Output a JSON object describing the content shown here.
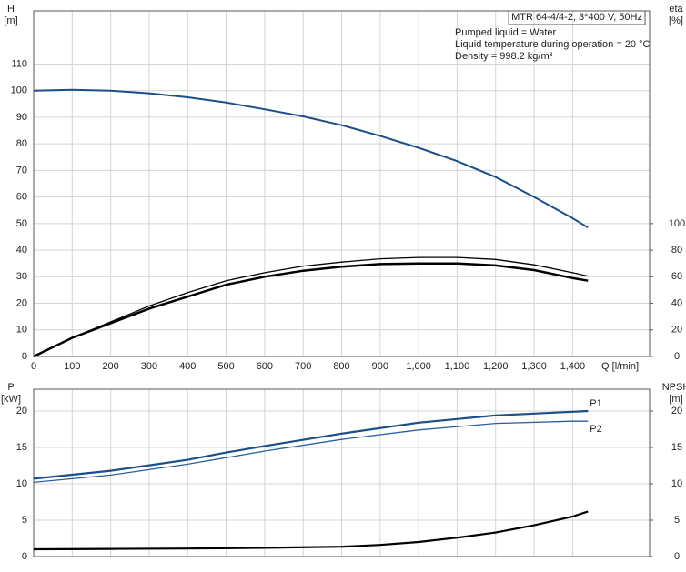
{
  "chart_data": [
    {
      "type": "line",
      "title": "MTR 64-4/4-2, 3*400 V, 50Hz",
      "annotations": [
        "Pumped liquid = Water",
        "Liquid temperature during operation = 20 °C",
        "Density = 998.2 kg/m³"
      ],
      "ylabel": "H",
      "yunit": "[m]",
      "y2label": "eta",
      "y2unit": "[%]",
      "xlabel": "Q [l/min]",
      "xlim": [
        0,
        1600
      ],
      "xticks": [
        0,
        100,
        200,
        300,
        400,
        500,
        600,
        700,
        800,
        900,
        {
          "value": 1000,
          "label": "1,000"
        },
        {
          "value": 1100,
          "label": "1,100"
        },
        {
          "value": 1200,
          "label": "1,200"
        },
        {
          "value": 1300,
          "label": "1,300"
        },
        {
          "value": 1400,
          "label": "1,400"
        }
      ],
      "ylim": [
        0,
        130
      ],
      "yticks": [
        0,
        10,
        20,
        30,
        40,
        50,
        60,
        70,
        80,
        90,
        100,
        110
      ],
      "y2lim": [
        0,
        260
      ],
      "y2ticks": [
        0,
        20,
        40,
        60,
        80,
        100
      ],
      "grid": true,
      "series": [
        {
          "color": "#1a4f8a",
          "width": 2,
          "x": [
            0,
            100,
            200,
            300,
            400,
            500,
            600,
            700,
            800,
            900,
            1000,
            1100,
            1200,
            1300,
            1400,
            1440
          ],
          "values": [
            100,
            100.3,
            100,
            99,
            97.5,
            95.5,
            93,
            90.3,
            87,
            83,
            78.5,
            73.5,
            67.5,
            60,
            52,
            48.5
          ]
        },
        {
          "color": "#000000",
          "width": 1.3,
          "axis": "y2",
          "x": [
            0,
            100,
            200,
            300,
            400,
            500,
            600,
            700,
            800,
            900,
            1000,
            1100,
            1200,
            1300,
            1400,
            1440
          ],
          "values": [
            0,
            14,
            26,
            38,
            48,
            57,
            63,
            68,
            71,
            73.5,
            74.5,
            74.5,
            73,
            69,
            63,
            60.5
          ]
        },
        {
          "color": "#000000",
          "width": 2.5,
          "axis": "y2",
          "x": [
            0,
            100,
            200,
            300,
            400,
            500,
            600,
            700,
            800,
            900,
            1000,
            1100,
            1200,
            1300,
            1400,
            1440
          ],
          "values": [
            0,
            14,
            25,
            36,
            45,
            54,
            60,
            64.5,
            67.5,
            69.5,
            70,
            70,
            68.5,
            65,
            59,
            57
          ]
        }
      ]
    },
    {
      "type": "line",
      "ylabel": "P",
      "yunit": "[kW]",
      "y2label": "NPSH",
      "y2unit": "[m]",
      "xlim": [
        0,
        1600
      ],
      "xticks": [
        0,
        100,
        200,
        300,
        400,
        500,
        600,
        700,
        800,
        900,
        1000,
        1100,
        1200,
        1300,
        1400
      ],
      "ylim": [
        0,
        23
      ],
      "yticks": [
        0,
        5,
        10,
        15,
        20
      ],
      "y2lim": [
        0,
        23
      ],
      "y2ticks": [
        0,
        5,
        10,
        15,
        20
      ],
      "grid": true,
      "series": [
        {
          "name": "P1",
          "color": "#1a4f8a",
          "width": 2.2,
          "x": [
            0,
            200,
            400,
            500,
            600,
            800,
            1000,
            1200,
            1400,
            1440
          ],
          "values": [
            10.7,
            11.8,
            13.3,
            14.3,
            15.2,
            16.9,
            18.4,
            19.4,
            19.9,
            20
          ]
        },
        {
          "name": "P2",
          "color": "#2a5f9e",
          "width": 1.3,
          "x": [
            0,
            200,
            400,
            500,
            600,
            800,
            1000,
            1200,
            1400,
            1440
          ],
          "values": [
            10.2,
            11.2,
            12.7,
            13.6,
            14.5,
            16.1,
            17.4,
            18.3,
            18.6,
            18.6
          ]
        },
        {
          "color": "#000000",
          "width": 2.2,
          "axis": "y2",
          "x": [
            0,
            200,
            400,
            600,
            800,
            900,
            1000,
            1100,
            1200,
            1300,
            1400,
            1440
          ],
          "values": [
            1,
            1.05,
            1.1,
            1.2,
            1.35,
            1.6,
            2,
            2.6,
            3.3,
            4.3,
            5.5,
            6.2
          ]
        }
      ]
    }
  ]
}
